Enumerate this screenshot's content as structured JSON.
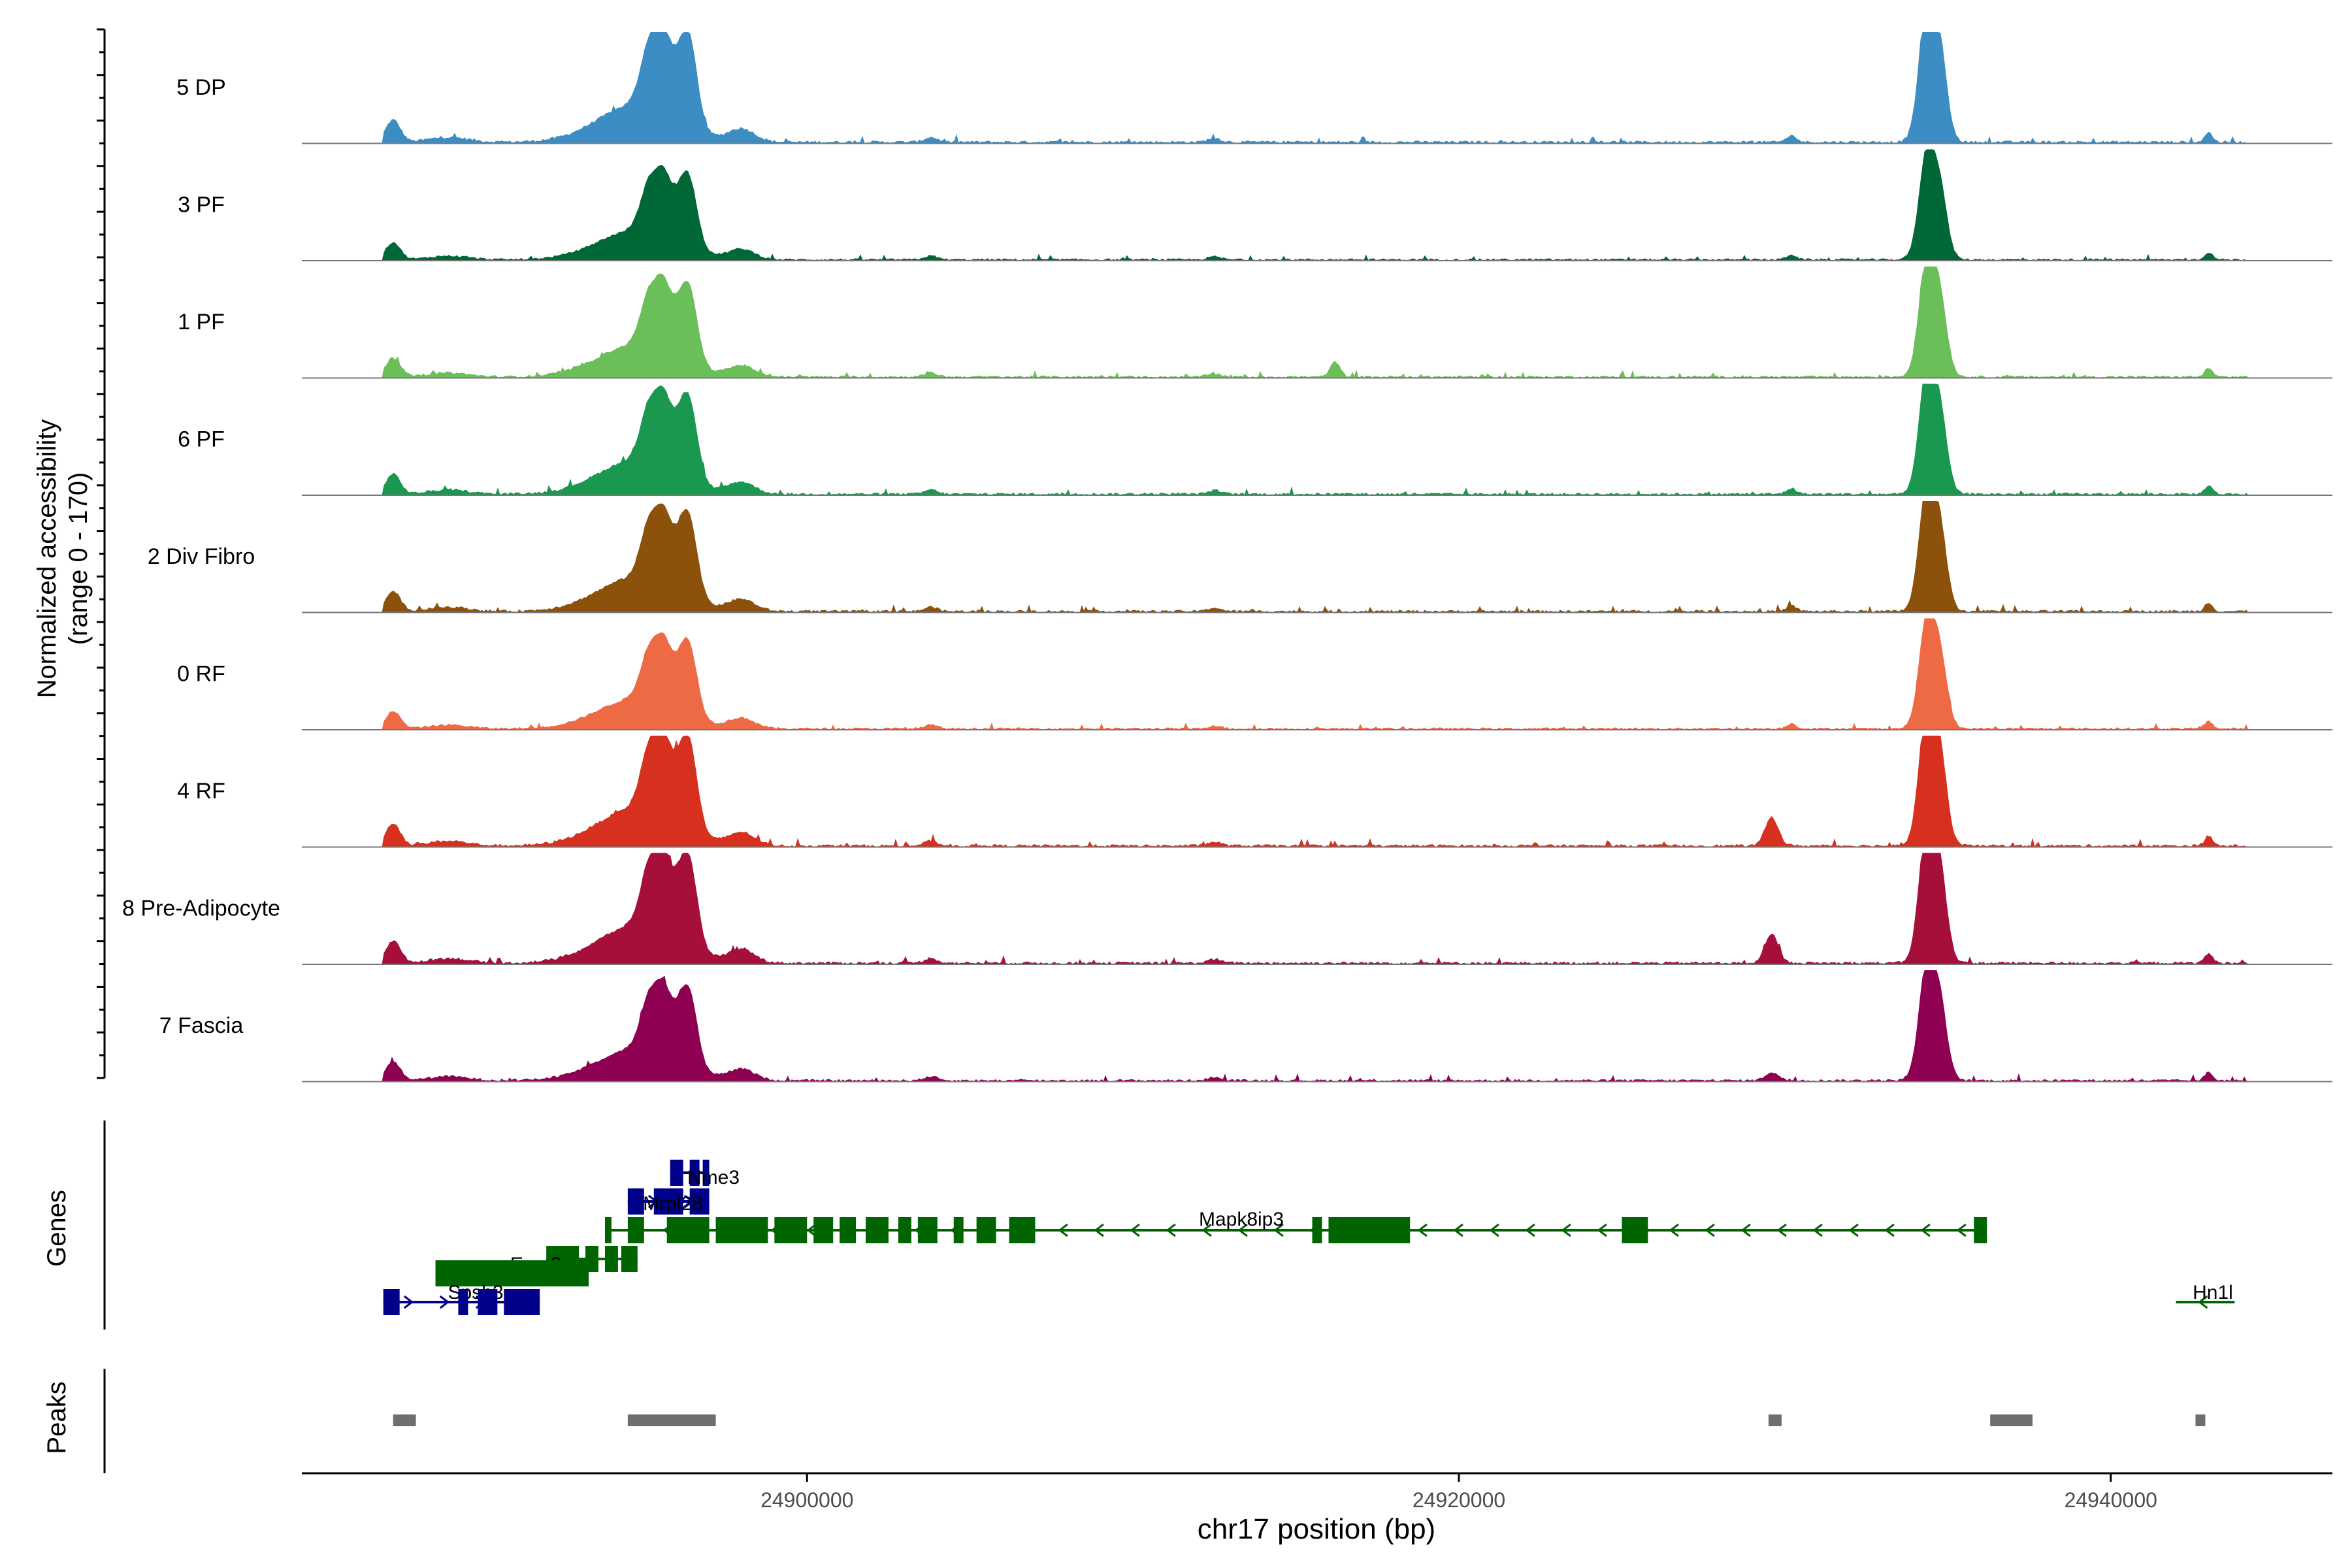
{
  "chart_data": {
    "type": "area",
    "title": "",
    "ylabel_line1": "Normalized accessibility",
    "ylabel_line2": "(range 0 - 170)",
    "yrange": [
      0,
      170
    ],
    "xlabel": "chr17 position (bp)",
    "xlim": [
      24884500,
      24946800
    ],
    "xticks": [
      24900000,
      24920000,
      24940000
    ],
    "xtick_labels": [
      "24900000",
      "24920000",
      "24940000"
    ],
    "genes_label": "Genes",
    "peaks_label": "Peaks",
    "tracks": [
      {
        "name": "5 DP",
        "color": "#3C8DC4",
        "scale": 1.0,
        "peaks": [
          [
            24887300,
            70,
            22
          ],
          [
            24894800,
            120,
            120
          ],
          [
            24895200,
            210,
            28
          ],
          [
            24895600,
            140,
            20
          ],
          [
            24896000,
            150,
            30
          ],
          [
            24896400,
            230,
            25
          ],
          [
            24898000,
            40,
            40
          ],
          [
            24934300,
            170,
            20
          ],
          [
            24934500,
            330,
            30
          ],
          [
            24934800,
            120,
            20
          ],
          [
            24930200,
            20,
            15
          ],
          [
            24943000,
            30,
            12
          ],
          [
            24889000,
            15,
            60
          ],
          [
            24903800,
            15,
            20
          ],
          [
            24912500,
            12,
            20
          ]
        ]
      },
      {
        "name": "3 PF",
        "color": "#006837",
        "scale": 0.78,
        "peaks": [
          [
            24887300,
            70,
            22
          ],
          [
            24894800,
            120,
            120
          ],
          [
            24895200,
            210,
            28
          ],
          [
            24895600,
            140,
            20
          ],
          [
            24896000,
            150,
            30
          ],
          [
            24896400,
            230,
            25
          ],
          [
            24898000,
            40,
            40
          ],
          [
            24934300,
            170,
            20
          ],
          [
            24934500,
            330,
            30
          ],
          [
            24934800,
            120,
            20
          ],
          [
            24930200,
            20,
            15
          ],
          [
            24943000,
            30,
            12
          ],
          [
            24889000,
            15,
            60
          ],
          [
            24903800,
            15,
            20
          ],
          [
            24912500,
            12,
            20
          ]
        ]
      },
      {
        "name": "1 PF",
        "color": "#6BBF59",
        "scale": 0.85,
        "peaks": [
          [
            24887300,
            70,
            22
          ],
          [
            24894800,
            120,
            120
          ],
          [
            24895200,
            210,
            28
          ],
          [
            24895600,
            140,
            20
          ],
          [
            24896000,
            150,
            30
          ],
          [
            24896400,
            230,
            25
          ],
          [
            24898000,
            40,
            40
          ],
          [
            24934300,
            170,
            20
          ],
          [
            24934500,
            330,
            30
          ],
          [
            24934800,
            120,
            20
          ],
          [
            24916200,
            55,
            15
          ],
          [
            24943000,
            30,
            12
          ],
          [
            24889000,
            15,
            60
          ],
          [
            24903800,
            15,
            20
          ],
          [
            24912500,
            12,
            20
          ]
        ]
      },
      {
        "name": "6 PF",
        "color": "#1A9850",
        "scale": 0.9,
        "peaks": [
          [
            24887300,
            70,
            22
          ],
          [
            24894800,
            120,
            120
          ],
          [
            24895200,
            210,
            28
          ],
          [
            24895600,
            140,
            20
          ],
          [
            24896000,
            150,
            30
          ],
          [
            24896400,
            230,
            25
          ],
          [
            24898000,
            40,
            40
          ],
          [
            24934300,
            170,
            20
          ],
          [
            24934500,
            330,
            30
          ],
          [
            24934800,
            120,
            20
          ],
          [
            24930200,
            20,
            15
          ],
          [
            24943000,
            30,
            12
          ],
          [
            24889000,
            15,
            60
          ],
          [
            24903800,
            15,
            20
          ],
          [
            24912500,
            12,
            20
          ]
        ]
      },
      {
        "name": "2 Div Fibro",
        "color": "#8C510A",
        "scale": 0.9,
        "peaks": [
          [
            24887300,
            70,
            22
          ],
          [
            24894800,
            120,
            120
          ],
          [
            24895200,
            210,
            28
          ],
          [
            24895600,
            140,
            20
          ],
          [
            24896000,
            150,
            30
          ],
          [
            24896400,
            230,
            25
          ],
          [
            24898000,
            40,
            40
          ],
          [
            24934300,
            170,
            20
          ],
          [
            24934500,
            330,
            30
          ],
          [
            24934800,
            120,
            20
          ],
          [
            24930200,
            20,
            15
          ],
          [
            24943000,
            30,
            12
          ],
          [
            24889000,
            15,
            60
          ],
          [
            24903800,
            15,
            20
          ],
          [
            24912500,
            12,
            20
          ]
        ]
      },
      {
        "name": "0 RF",
        "color": "#EE6A45",
        "scale": 0.8,
        "peaks": [
          [
            24887300,
            70,
            22
          ],
          [
            24894800,
            120,
            120
          ],
          [
            24895200,
            210,
            28
          ],
          [
            24895600,
            140,
            20
          ],
          [
            24896000,
            150,
            30
          ],
          [
            24896400,
            230,
            25
          ],
          [
            24898000,
            40,
            40
          ],
          [
            24934300,
            170,
            20
          ],
          [
            24934500,
            330,
            30
          ],
          [
            24934800,
            120,
            20
          ],
          [
            24930200,
            20,
            15
          ],
          [
            24943000,
            30,
            12
          ],
          [
            24889000,
            15,
            60
          ],
          [
            24903800,
            15,
            20
          ],
          [
            24912500,
            12,
            20
          ]
        ]
      },
      {
        "name": "4 RF",
        "color": "#D7301F",
        "scale": 1.0,
        "peaks": [
          [
            24887300,
            70,
            22
          ],
          [
            24894800,
            120,
            120
          ],
          [
            24895200,
            210,
            28
          ],
          [
            24895600,
            140,
            20
          ],
          [
            24896000,
            150,
            30
          ],
          [
            24896400,
            230,
            25
          ],
          [
            24898000,
            40,
            40
          ],
          [
            24934300,
            170,
            20
          ],
          [
            24934500,
            330,
            30
          ],
          [
            24934800,
            120,
            20
          ],
          [
            24929600,
            90,
            20
          ],
          [
            24943000,
            30,
            12
          ],
          [
            24889000,
            15,
            60
          ],
          [
            24903800,
            15,
            20
          ],
          [
            24912500,
            12,
            20
          ]
        ]
      },
      {
        "name": "8 Pre-Adipocyte",
        "color": "#A50F3A",
        "scale": 1.0,
        "peaks": [
          [
            24887300,
            70,
            22
          ],
          [
            24894800,
            120,
            120
          ],
          [
            24895200,
            210,
            28
          ],
          [
            24895600,
            140,
            20
          ],
          [
            24896000,
            150,
            30
          ],
          [
            24896400,
            230,
            25
          ],
          [
            24898000,
            40,
            40
          ],
          [
            24934300,
            170,
            20
          ],
          [
            24934500,
            330,
            30
          ],
          [
            24934800,
            120,
            20
          ],
          [
            24929600,
            90,
            20
          ],
          [
            24943000,
            30,
            12
          ],
          [
            24889000,
            15,
            60
          ],
          [
            24903800,
            15,
            20
          ],
          [
            24912500,
            12,
            20
          ]
        ]
      },
      {
        "name": "7 Fascia",
        "color": "#8E0152",
        "scale": 0.85,
        "peaks": [
          [
            24887300,
            70,
            22
          ],
          [
            24894800,
            120,
            120
          ],
          [
            24895200,
            210,
            28
          ],
          [
            24895600,
            140,
            20
          ],
          [
            24896000,
            150,
            30
          ],
          [
            24896400,
            230,
            25
          ],
          [
            24898000,
            40,
            40
          ],
          [
            24934300,
            170,
            20
          ],
          [
            24934500,
            330,
            30
          ],
          [
            24934800,
            120,
            20
          ],
          [
            24929600,
            30,
            20
          ],
          [
            24943000,
            30,
            12
          ],
          [
            24889000,
            15,
            60
          ],
          [
            24903800,
            15,
            20
          ],
          [
            24912500,
            12,
            20
          ]
        ]
      }
    ],
    "genes": [
      {
        "name": "Nme3",
        "color": "#00008B",
        "start": 24895800,
        "end": 24897000,
        "strand": "+",
        "row": 0,
        "exons": [
          [
            24895800,
            24896200
          ],
          [
            24896400,
            24896700
          ],
          [
            24896800,
            24897000
          ]
        ]
      },
      {
        "name": "Mrpl28",
        "color": "#00008B",
        "start": 24894500,
        "end": 24897000,
        "strand": "+",
        "row": 1,
        "exons": [
          [
            24894500,
            24895000
          ],
          [
            24895300,
            24896200
          ],
          [
            24896400,
            24897000
          ]
        ]
      },
      {
        "name": "Mapk8ip3",
        "color": "#006400",
        "start": 24893800,
        "end": 24936200,
        "strand": "-",
        "row": 2,
        "exons": [
          [
            24893800,
            24894000
          ],
          [
            24894500,
            24895000
          ],
          [
            24895700,
            24897000
          ],
          [
            24897200,
            24898800
          ],
          [
            24899000,
            24900000
          ],
          [
            24900200,
            24900800
          ],
          [
            24901000,
            24901500
          ],
          [
            24901800,
            24902500
          ],
          [
            24902800,
            24903200
          ],
          [
            24903400,
            24904000
          ],
          [
            24904500,
            24904800
          ],
          [
            24905200,
            24905800
          ],
          [
            24906200,
            24907000
          ],
          [
            24915500,
            24915800
          ],
          [
            24916000,
            24918500
          ],
          [
            24925000,
            24925800
          ],
          [
            24935800,
            24936200
          ]
        ]
      },
      {
        "name": "Eme2",
        "color": "#006400",
        "start": 24892000,
        "end": 24894800,
        "strand": "-",
        "row": 3,
        "exons": [
          [
            24892000,
            24893000
          ],
          [
            24893200,
            24893600
          ],
          [
            24893800,
            24894200
          ],
          [
            24894300,
            24894800
          ]
        ]
      },
      {
        "name": "Spsb3",
        "color": "#006400",
        "start": 24888600,
        "end": 24893300,
        "strand": "-",
        "row": 3.5,
        "exons": [
          [
            24888600,
            24893300
          ]
        ]
      },
      {
        "name": "Hn1l",
        "color": "#006400",
        "start": 24942000,
        "end": 24943800,
        "strand": "-",
        "row": 4.5,
        "exons": []
      },
      {
        "name": "",
        "color": "#00008B",
        "start": 24887000,
        "end": 24891800,
        "strand": "+",
        "row": 4.5,
        "exons": [
          [
            24887000,
            24887500
          ],
          [
            24889300,
            24889600
          ],
          [
            24889900,
            24890500
          ],
          [
            24890700,
            24891800
          ]
        ]
      }
    ],
    "peaks": [
      [
        24887300,
        24888000
      ],
      [
        24894500,
        24897200
      ],
      [
        24929500,
        24929900
      ],
      [
        24936300,
        24937600
      ],
      [
        24942600,
        24942900
      ]
    ]
  }
}
